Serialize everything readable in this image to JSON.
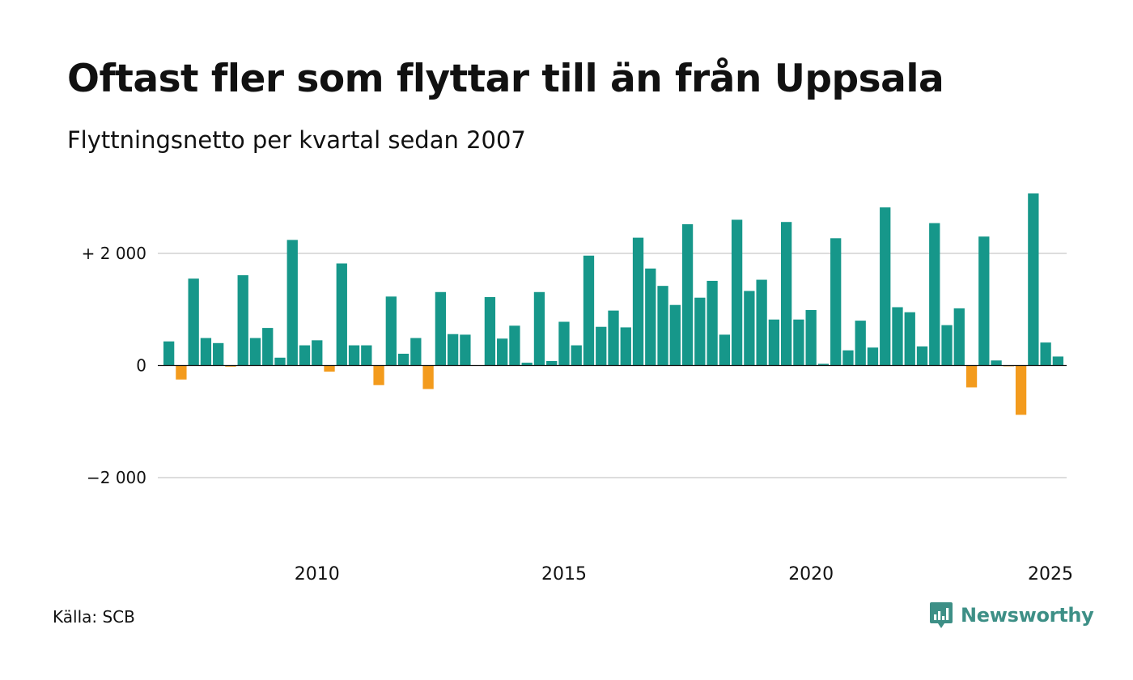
{
  "title": "Oftast fler som flyttar till än från Uppsala",
  "subtitle": "Flyttningsnetto per kvartal sedan 2007",
  "source": "Källa: SCB",
  "brand": "Newsworthy",
  "colors": {
    "positive": "#16978a",
    "negative": "#f39b1d",
    "grid": "#dddddd",
    "brand": "#3d8f86"
  },
  "chart_data": {
    "type": "bar",
    "title": "Oftast fler som flyttar till än från Uppsala",
    "subtitle": "Flyttningsnetto per kvartal sedan 2007",
    "xlabel": "",
    "ylabel": "",
    "ylim": [
      -3000,
      3300
    ],
    "yticks": [
      2000,
      0,
      -2000
    ],
    "ytick_labels": [
      "+ 2 000",
      "0",
      "−2 000"
    ],
    "xticks": [
      2010,
      2015,
      2020,
      2025
    ],
    "xtick_labels": [
      "2010",
      "2015",
      "2020",
      "2025"
    ],
    "grid": true,
    "legend": "none",
    "series": [
      {
        "values": [
          430,
          -250,
          1550,
          490,
          400,
          -20,
          1610,
          490,
          670,
          140,
          2240,
          360,
          450,
          -110,
          1820,
          360,
          360,
          -350,
          1230,
          210,
          490,
          -420,
          1310,
          560,
          550,
          0,
          1220,
          480,
          710,
          50,
          1310,
          80,
          780,
          360,
          1960,
          690,
          980,
          680,
          2280,
          1730,
          1420,
          1080,
          2520,
          1210,
          1510,
          550,
          2600,
          1330,
          1530,
          820,
          2560,
          820,
          990,
          30,
          2270,
          270,
          800,
          320,
          2820,
          1040,
          950,
          340,
          2540,
          720,
          1020,
          -390,
          2300,
          90,
          -10,
          -880,
          3070,
          410,
          160
        ]
      }
    ]
  }
}
